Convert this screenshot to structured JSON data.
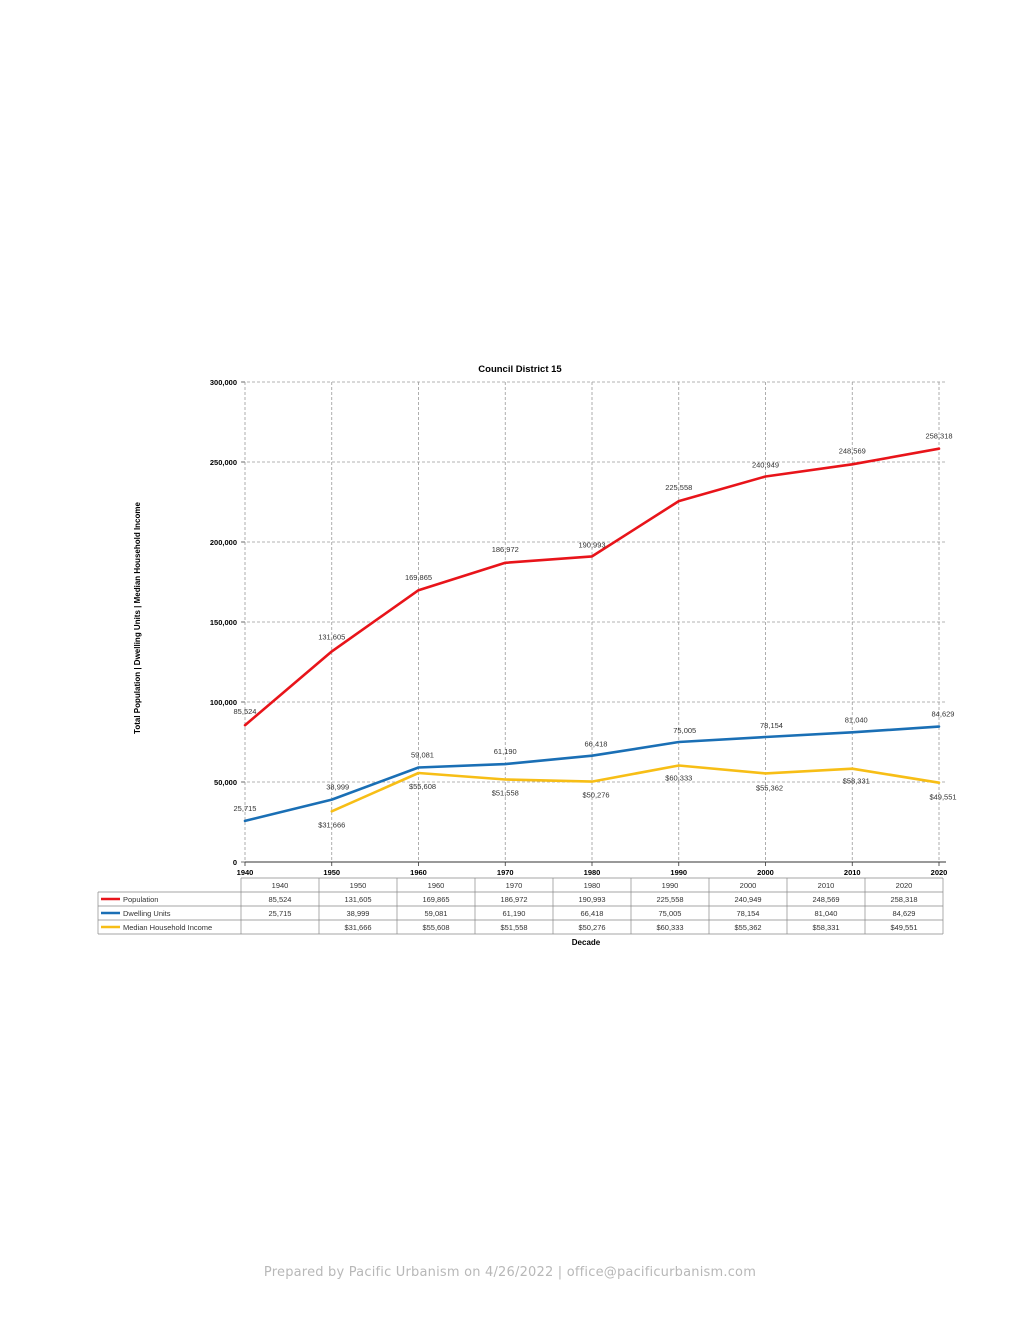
{
  "chart_data": {
    "type": "line",
    "title": "Council District 15",
    "xlabel": "Decade",
    "ylabel": "Total Population | Dwelling Units | Median Household Income",
    "ylim": [
      0,
      300000
    ],
    "yticks": [
      0,
      50000,
      100000,
      150000,
      200000,
      250000,
      300000
    ],
    "ytick_labels": [
      "0",
      "50,000",
      "100,000",
      "150,000",
      "200,000",
      "250,000",
      "300,000"
    ],
    "grid": true,
    "categories": [
      "1940",
      "1950",
      "1960",
      "1970",
      "1980",
      "1990",
      "2000",
      "2010",
      "2020"
    ],
    "series": [
      {
        "name": "Population",
        "color": "#e8141a",
        "values": [
          85524,
          131605,
          169865,
          186972,
          190993,
          225558,
          240949,
          248569,
          258318
        ],
        "labels": [
          "85,524",
          "131,605",
          "169,865",
          "186,972",
          "190,993",
          "225,558",
          "240,949",
          "248,569",
          "258,318"
        ]
      },
      {
        "name": "Dwelling Units",
        "color": "#1a6fb5",
        "values": [
          25715,
          38999,
          59081,
          61190,
          66418,
          75005,
          78154,
          81040,
          84629
        ],
        "labels": [
          "25,715",
          "38,999",
          "59,081",
          "61,190",
          "66,418",
          "75,005",
          "78,154",
          "81,040",
          "84,629"
        ]
      },
      {
        "name": "Median Household Income",
        "color": "#f7be16",
        "values": [
          null,
          31666,
          55608,
          51558,
          50276,
          60333,
          55362,
          58331,
          49551
        ],
        "labels": [
          "",
          "$31,666",
          "$55,608",
          "$51,558",
          "$50,276",
          "$60,333",
          "$55,362",
          "$58,331",
          "$49,551"
        ]
      }
    ]
  },
  "footer": "Prepared by Pacific Urbanism on 4/26/2022 | office@pacificurbanism.com"
}
